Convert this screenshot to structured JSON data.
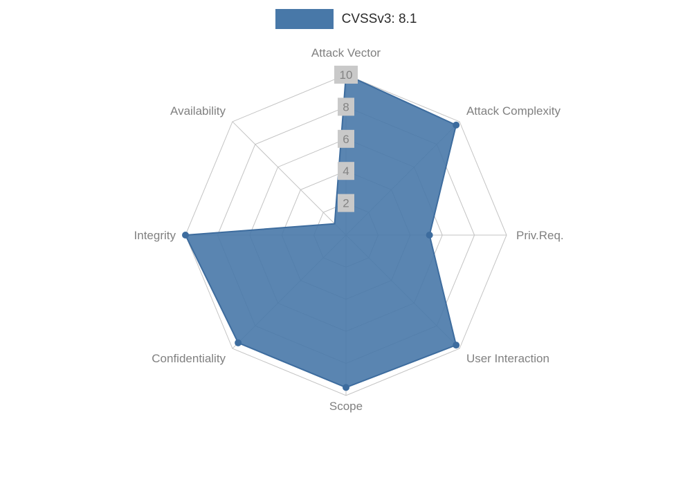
{
  "chart_data": {
    "type": "radar",
    "title": "CVSSv3: 8.1",
    "categories": [
      "Attack Vector",
      "Attack Complexity",
      "Priv.Req.",
      "User Interaction",
      "Scope",
      "Confidentiality",
      "Integrity",
      "Availability"
    ],
    "series": [
      {
        "name": "CVSSv3: 8.1",
        "values": [
          10,
          9.7,
          5.2,
          9.7,
          9.5,
          9.5,
          10,
          1
        ]
      }
    ],
    "ticks": [
      2,
      4,
      6,
      8,
      10
    ],
    "max": 10,
    "legend_position": "top",
    "grid": true,
    "colors": {
      "fill": "#4878a8",
      "fill_opacity": 0.9,
      "stroke": "#3d6c9e",
      "grid": "#c3c3c3",
      "axis_label": "#808080",
      "tick_bg": "#c9c9c9",
      "tick_text": "#838383",
      "title_text": "#2b2b2b"
    }
  }
}
